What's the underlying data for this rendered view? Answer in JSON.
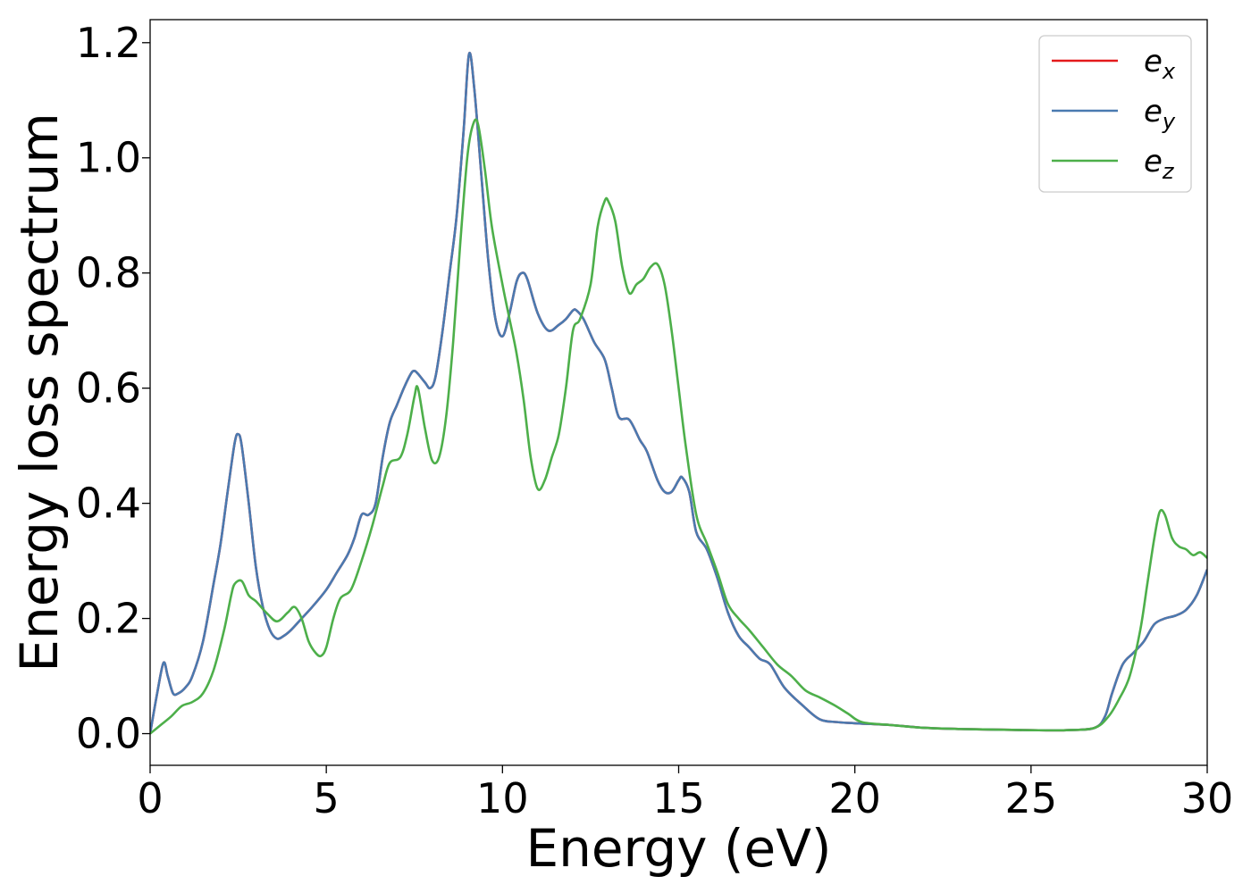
{
  "chart_data": {
    "type": "line",
    "title": "",
    "xlabel": "Energy (eV)",
    "ylabel": "Energy loss spectrum",
    "xlim": [
      0,
      30
    ],
    "ylim": [
      -0.055,
      1.24
    ],
    "xticks": [
      0,
      5,
      10,
      15,
      20,
      25,
      30
    ],
    "xtick_labels": [
      "0",
      "5",
      "10",
      "15",
      "20",
      "25",
      "30"
    ],
    "yticks": [
      0.0,
      0.2,
      0.4,
      0.6,
      0.8,
      1.0,
      1.2
    ],
    "ytick_labels": [
      "0.0",
      "0.2",
      "0.4",
      "0.6",
      "0.8",
      "1.0",
      "1.2"
    ],
    "grid": false,
    "legend_position": "top-right",
    "series": [
      {
        "name": "e_x",
        "legend_base": "e",
        "legend_sub": "x",
        "color": "#e41a1c",
        "x": [
          0,
          0.2,
          0.38,
          0.5,
          0.65,
          0.8,
          1.0,
          1.2,
          1.5,
          1.8,
          2.0,
          2.2,
          2.4,
          2.5,
          2.6,
          2.8,
          3.0,
          3.2,
          3.4,
          3.6,
          3.8,
          4.0,
          4.3,
          4.6,
          5.0,
          5.3,
          5.6,
          5.8,
          6.0,
          6.2,
          6.4,
          6.6,
          6.8,
          7.0,
          7.2,
          7.4,
          7.5,
          7.6,
          7.8,
          7.95,
          8.1,
          8.3,
          8.5,
          8.7,
          8.9,
          9.05,
          9.2,
          9.4,
          9.6,
          9.8,
          10.0,
          10.2,
          10.4,
          10.55,
          10.7,
          11.0,
          11.3,
          11.6,
          11.8,
          12.0,
          12.1,
          12.3,
          12.6,
          12.9,
          13.1,
          13.3,
          13.6,
          13.9,
          14.1,
          14.4,
          14.6,
          14.8,
          15.0,
          15.1,
          15.3,
          15.5,
          15.8,
          16.1,
          16.4,
          16.7,
          17.0,
          17.3,
          17.6,
          18.0,
          18.5,
          19.0,
          19.5,
          20.0,
          21.0,
          22.0,
          23.0,
          24.0,
          25.0,
          26.0,
          26.8,
          27.1,
          27.3,
          27.6,
          27.9,
          28.2,
          28.5,
          28.8,
          29.1,
          29.4,
          29.7,
          30.0
        ],
        "values": [
          0.0,
          0.07,
          0.123,
          0.1,
          0.07,
          0.07,
          0.08,
          0.1,
          0.16,
          0.26,
          0.33,
          0.42,
          0.505,
          0.52,
          0.5,
          0.4,
          0.29,
          0.22,
          0.18,
          0.165,
          0.17,
          0.18,
          0.2,
          0.22,
          0.25,
          0.28,
          0.31,
          0.34,
          0.38,
          0.38,
          0.4,
          0.48,
          0.54,
          0.57,
          0.6,
          0.625,
          0.63,
          0.625,
          0.61,
          0.6,
          0.62,
          0.7,
          0.8,
          0.9,
          1.05,
          1.18,
          1.12,
          0.97,
          0.82,
          0.72,
          0.69,
          0.73,
          0.785,
          0.8,
          0.79,
          0.73,
          0.7,
          0.71,
          0.72,
          0.735,
          0.735,
          0.72,
          0.68,
          0.65,
          0.6,
          0.55,
          0.545,
          0.51,
          0.49,
          0.44,
          0.42,
          0.42,
          0.44,
          0.445,
          0.42,
          0.35,
          0.32,
          0.27,
          0.21,
          0.17,
          0.15,
          0.13,
          0.12,
          0.08,
          0.05,
          0.025,
          0.02,
          0.018,
          0.015,
          0.01,
          0.008,
          0.007,
          0.006,
          0.006,
          0.01,
          0.03,
          0.07,
          0.12,
          0.14,
          0.16,
          0.19,
          0.2,
          0.205,
          0.215,
          0.24,
          0.285
        ]
      },
      {
        "name": "e_y",
        "legend_base": "e",
        "legend_sub": "y",
        "color": "#4a7ab0",
        "same_values_as": "e_x"
      },
      {
        "name": "e_z",
        "legend_base": "e",
        "legend_sub": "z",
        "color": "#4daf4a",
        "x": [
          0,
          0.3,
          0.6,
          0.9,
          1.2,
          1.5,
          1.8,
          2.1,
          2.3,
          2.4,
          2.6,
          2.8,
          3.0,
          3.3,
          3.6,
          3.9,
          4.1,
          4.3,
          4.5,
          4.7,
          4.85,
          5.0,
          5.2,
          5.4,
          5.7,
          6.0,
          6.3,
          6.6,
          6.8,
          7.1,
          7.3,
          7.5,
          7.6,
          7.8,
          8.0,
          8.2,
          8.4,
          8.6,
          8.8,
          9.0,
          9.15,
          9.3,
          9.5,
          9.7,
          10.0,
          10.2,
          10.4,
          10.6,
          10.8,
          11.0,
          11.2,
          11.4,
          11.6,
          11.8,
          12.0,
          12.2,
          12.5,
          12.7,
          12.9,
          13.0,
          13.2,
          13.4,
          13.6,
          13.8,
          14.0,
          14.2,
          14.4,
          14.6,
          14.8,
          15.0,
          15.2,
          15.5,
          15.8,
          16.1,
          16.4,
          16.7,
          17.0,
          17.4,
          17.8,
          18.2,
          18.6,
          19.0,
          19.4,
          19.8,
          20.2,
          21.0,
          22.0,
          23.0,
          24.0,
          25.0,
          26.0,
          26.8,
          27.2,
          27.5,
          27.8,
          28.1,
          28.3,
          28.5,
          28.65,
          28.8,
          29.0,
          29.2,
          29.4,
          29.6,
          29.8,
          30.0
        ],
        "values": [
          0.0,
          0.015,
          0.03,
          0.048,
          0.055,
          0.07,
          0.11,
          0.18,
          0.24,
          0.26,
          0.265,
          0.24,
          0.23,
          0.21,
          0.195,
          0.21,
          0.22,
          0.2,
          0.16,
          0.14,
          0.135,
          0.15,
          0.2,
          0.235,
          0.25,
          0.3,
          0.36,
          0.43,
          0.47,
          0.48,
          0.52,
          0.585,
          0.6,
          0.53,
          0.475,
          0.48,
          0.55,
          0.68,
          0.85,
          1.0,
          1.055,
          1.06,
          0.98,
          0.88,
          0.78,
          0.72,
          0.66,
          0.58,
          0.48,
          0.425,
          0.44,
          0.48,
          0.52,
          0.6,
          0.7,
          0.72,
          0.78,
          0.88,
          0.925,
          0.925,
          0.89,
          0.81,
          0.765,
          0.78,
          0.79,
          0.81,
          0.815,
          0.78,
          0.7,
          0.6,
          0.5,
          0.38,
          0.33,
          0.28,
          0.225,
          0.2,
          0.18,
          0.15,
          0.12,
          0.1,
          0.075,
          0.063,
          0.05,
          0.035,
          0.02,
          0.015,
          0.01,
          0.008,
          0.007,
          0.006,
          0.006,
          0.01,
          0.03,
          0.06,
          0.1,
          0.18,
          0.26,
          0.34,
          0.385,
          0.38,
          0.34,
          0.325,
          0.32,
          0.31,
          0.315,
          0.305
        ]
      }
    ]
  }
}
